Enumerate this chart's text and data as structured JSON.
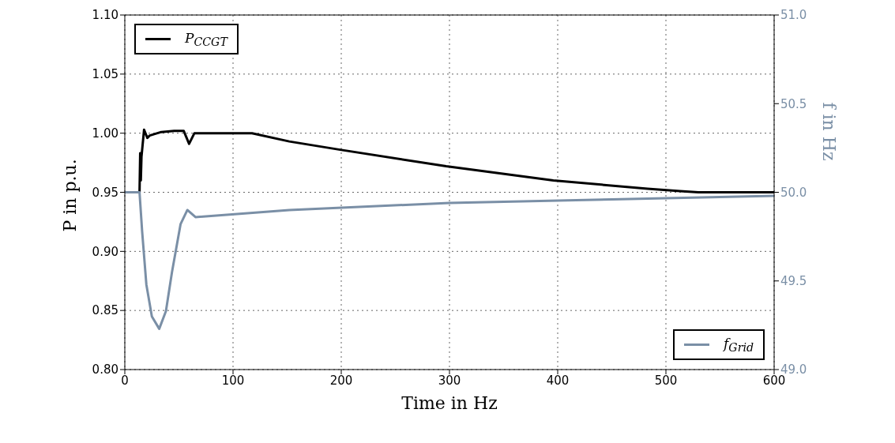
{
  "chart_data": {
    "type": "line",
    "xlabel": "Time in Hz",
    "ylabel": "P in p.u.",
    "y2label": "f in Hz",
    "xlim": [
      0,
      600
    ],
    "xticks": [
      0,
      100,
      200,
      300,
      400,
      500,
      600
    ],
    "ylim": [
      0.8,
      1.1
    ],
    "yticks": [
      {
        "value": 0.8,
        "label": "0.80"
      },
      {
        "value": 0.85,
        "label": "0.85"
      },
      {
        "value": 0.9,
        "label": "0.90"
      },
      {
        "value": 0.95,
        "label": "0.95"
      },
      {
        "value": 1.0,
        "label": "1.00"
      },
      {
        "value": 1.05,
        "label": "1.05"
      },
      {
        "value": 1.1,
        "label": "1.10"
      }
    ],
    "y2lim": [
      49.0,
      51.0
    ],
    "y2ticks": [
      {
        "value": 49.0,
        "label": "49.0"
      },
      {
        "value": 49.5,
        "label": "49.5"
      },
      {
        "value": 50.0,
        "label": "50.0"
      },
      {
        "value": 50.5,
        "label": "50.5"
      },
      {
        "value": 51.0,
        "label": "51.0"
      }
    ],
    "grid": true,
    "legend": "top left",
    "marker": "none",
    "line_style": "solid",
    "series": [
      {
        "name": "P$_{CCGT}$",
        "color": "#000000",
        "x": [
          0,
          13.6,
          14.2,
          14.8,
          15.4,
          17.8,
          20.8,
          23,
          33.7,
          45.6,
          54.4,
          59.4,
          64.3,
          117.6,
          152,
          199,
          297,
          396,
          483,
          513,
          530,
          600
        ],
        "values": [
          0.95,
          0.95,
          0.983,
          0.96,
          0.98,
          1.003,
          0.996,
          0.998,
          1.001,
          1.002,
          1.002,
          0.991,
          1.0,
          1.0,
          0.993,
          0.986,
          0.972,
          0.96,
          0.953,
          0.951,
          0.95,
          0.95
        ]
      },
      {
        "name": "f$_{Grid}$",
        "color": "#7a8fa6",
        "axis": "y2",
        "x": [
          0,
          13.6,
          16,
          19.9,
          25,
          31.8,
          38,
          43.6,
          51.5,
          57.8,
          65.3,
          152,
          300,
          450,
          600
        ],
        "values": [
          50.0,
          50.0,
          49.78,
          49.48,
          49.3,
          49.23,
          49.33,
          49.55,
          49.82,
          49.9,
          49.86,
          49.9,
          49.94,
          49.96,
          49.98
        ]
      }
    ]
  }
}
